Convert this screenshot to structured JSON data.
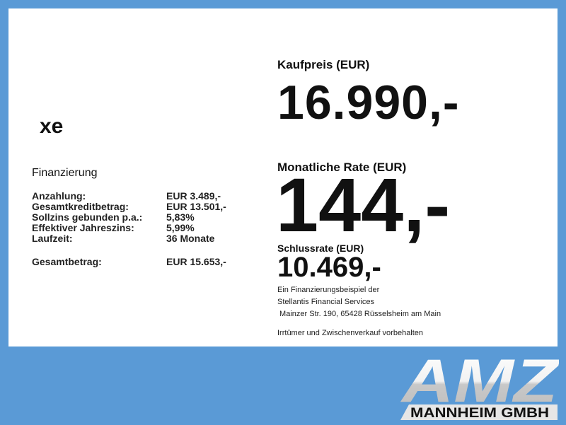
{
  "model": "xe",
  "financing": {
    "title": "Finanzierung",
    "rows": [
      {
        "label": "Anzahlung:",
        "value": "EUR 3.489,-"
      },
      {
        "label": "Gesamtkreditbetrag:",
        "value": "EUR 13.501,-"
      },
      {
        "label": "Sollzins gebunden p.a.:",
        "value": "5,83%"
      },
      {
        "label": "Effektiver Jahreszins:",
        "value": "5,99%"
      },
      {
        "label": "Laufzeit:",
        "value": "36 Monate"
      }
    ],
    "total": {
      "label": "Gesamtbetrag:",
      "value": "EUR 15.653,-"
    }
  },
  "price": {
    "label": "Kaufpreis (EUR)",
    "value": "16.990,-"
  },
  "monthly": {
    "label": "Monatliche Rate (EUR)",
    "value": "144,-"
  },
  "final": {
    "label": "Schlussrate (EUR)",
    "value": "10.469,-"
  },
  "notes": [
    "Ein Finanzierungsbeispiel der",
    "Stellantis Financial Services",
    " Mainzer Str. 190, 65428 Rüsselsheim am Main"
  ],
  "disclaimer": "Irrtümer und Zwischenverkauf vorbehalten",
  "logo": {
    "main": "AMZ",
    "sub": "MANNHEIM GMBH"
  },
  "colors": {
    "background": "#5a9ad6",
    "panel": "#ffffff"
  }
}
